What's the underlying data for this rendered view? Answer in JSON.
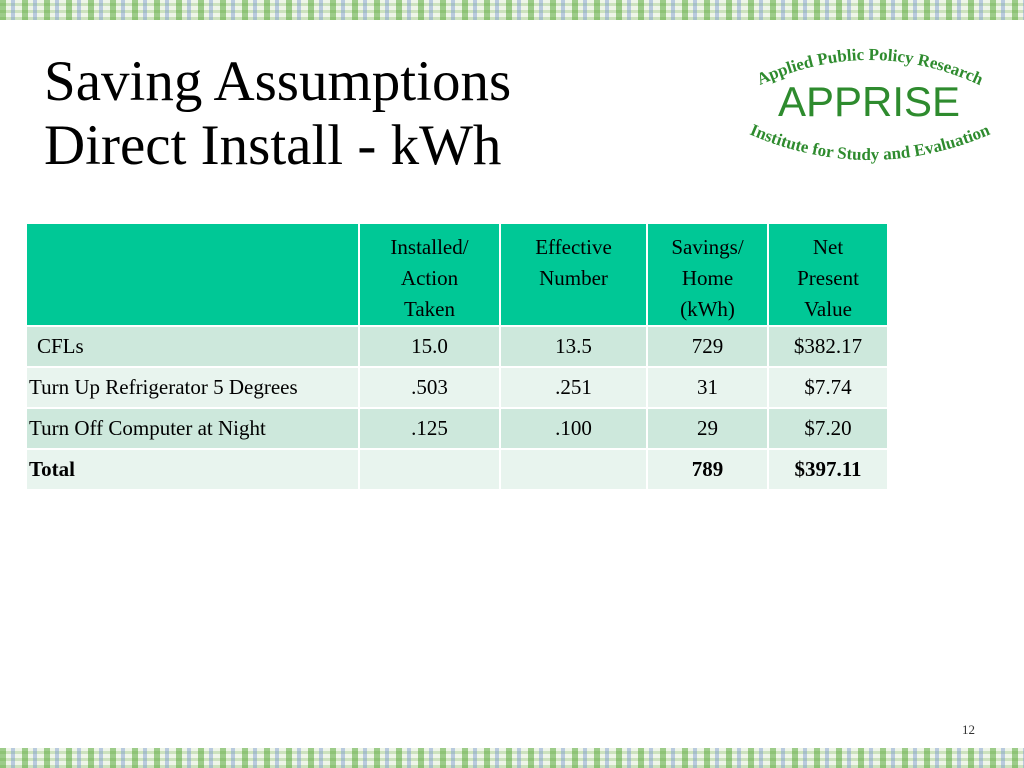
{
  "slide": {
    "title_line1": "Saving Assumptions",
    "title_line2": "Direct Install - kWh",
    "page_number": "12"
  },
  "logo": {
    "top_arc": "Applied Public Policy Research",
    "name": "APPRISE",
    "bottom_arc": "Institute for Study and Evaluation",
    "color": "#2e8b2e"
  },
  "table": {
    "headers": [
      "",
      [
        "Installed/",
        "Action",
        "Taken"
      ],
      [
        "Effective",
        "Number"
      ],
      [
        "Savings/",
        "Home",
        "(kWh)"
      ],
      [
        "Net",
        "Present",
        "Value"
      ]
    ],
    "rows": [
      [
        "CFLs",
        "15.0",
        "13.5",
        "729",
        "$382.17"
      ],
      [
        "Turn Up Refrigerator 5 Degrees",
        ".503",
        ".251",
        "31",
        "$7.74"
      ],
      [
        "Turn Off Computer at Night",
        ".125",
        ".100",
        "29",
        "$7.20"
      ],
      [
        "Total",
        "",
        "",
        "789",
        "$397.11"
      ]
    ],
    "header_color": "#00c896",
    "row_color_dark": "#cde8dc",
    "row_color_light": "#e8f4ee"
  }
}
